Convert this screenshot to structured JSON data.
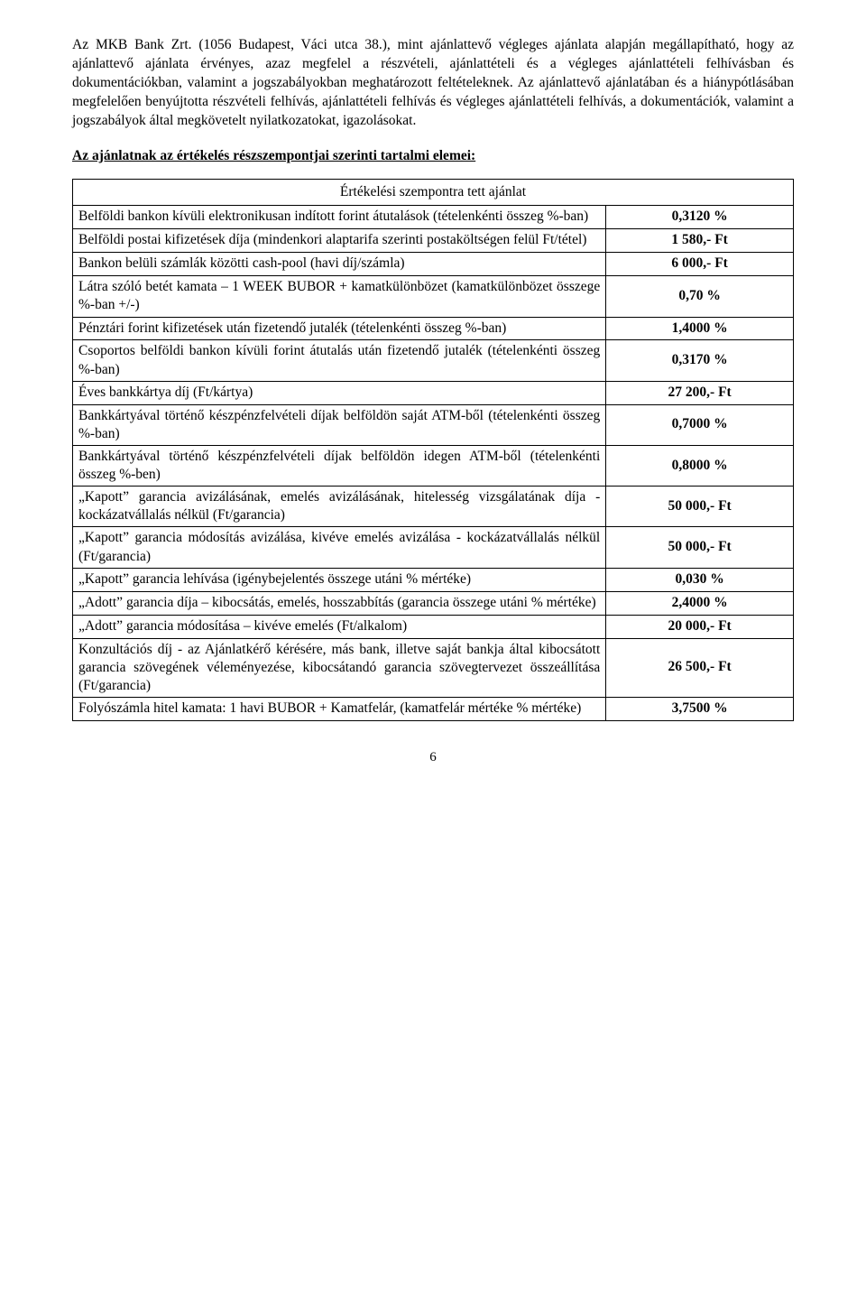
{
  "intro": {
    "para1": "Az MKB Bank Zrt. (1056 Budapest, Váci utca 38.), mint ajánlattevő végleges ajánlata alapján megállapítható, hogy az ajánlattevő ajánlata érvényes, azaz megfelel a részvételi, ajánlattételi és a végleges ajánlattételi felhívásban és dokumentációkban, valamint a jogszabályokban meghatározott feltételeknek. Az ajánlattevő ajánlatában és a hiánypótlásában megfelelően benyújtotta részvételi felhívás, ajánlattételi felhívás és végleges ajánlattételi felhívás, a dokumentációk, valamint a jogszabályok által megkövetelt nyilatkozatokat, igazolásokat."
  },
  "subheading": "Az ajánlatnak az értékelés részszempontjai szerinti tartalmi elemei:",
  "table": {
    "header": "Értékelési szempontra tett ajánlat",
    "rows": [
      {
        "label": "Belföldi bankon kívüli elektronikusan indított forint átutalások (tételenkénti összeg %-ban)",
        "value": "0,3120 %"
      },
      {
        "label": "Belföldi postai kifizetések díja (mindenkori alaptarifa szerinti postaköltségen felül Ft/tétel)",
        "value": "1 580,- Ft"
      },
      {
        "label": "Bankon belüli számlák közötti cash-pool (havi díj/számla)",
        "value": "6 000,- Ft"
      },
      {
        "label": "Látra szóló betét kamata – 1 WEEK BUBOR + kamatkülönbözet (kamatkülönbözet összege %-ban +/-)",
        "value": "0,70 %"
      },
      {
        "label": "Pénztári forint kifizetések után fizetendő jutalék (tételenkénti összeg %-ban)",
        "value": "1,4000 %"
      },
      {
        "label": "Csoportos belföldi bankon kívüli forint átutalás után fizetendő jutalék (tételenkénti összeg %-ban)",
        "value": "0,3170 %"
      },
      {
        "label": "Éves bankkártya díj (Ft/kártya)",
        "value": "27 200,- Ft"
      },
      {
        "label": "Bankkártyával történő készpénzfelvételi díjak belföldön saját ATM-ből (tételenkénti összeg %-ban)",
        "value": "0,7000 %"
      },
      {
        "label": "Bankkártyával történő készpénzfelvételi díjak belföldön idegen ATM-ből (tételenkénti összeg %-ben)",
        "value": "0,8000 %"
      },
      {
        "label": "„Kapott” garancia avizálásának, emelés avizálásának, hitelesség vizsgálatának díja - kockázatvállalás nélkül (Ft/garancia)",
        "value": "50 000,- Ft"
      },
      {
        "label": "„Kapott” garancia módosítás avizálása, kivéve emelés avizálása - kockázatvállalás nélkül (Ft/garancia)",
        "value": "50 000,- Ft"
      },
      {
        "label": "„Kapott” garancia lehívása (igénybejelentés összege utáni % mértéke)",
        "value": "0,030 %"
      },
      {
        "label": "„Adott” garancia díja – kibocsátás, emelés, hosszabbítás (garancia összege utáni %  mértéke)",
        "value": "2,4000 %"
      },
      {
        "label": "„Adott” garancia módosítása – kivéve emelés (Ft/alkalom)",
        "value": "20 000,- Ft"
      },
      {
        "label": "Konzultációs díj - az Ajánlatkérő kérésére, más bank, illetve saját bankja által kibocsátott garancia szövegének véleményezése, kibocsátandó garancia szövegtervezet összeállítása (Ft/garancia)",
        "value": "26 500,- Ft"
      },
      {
        "label": "Folyószámla hitel kamata: 1 havi BUBOR + Kamatfelár, (kamatfelár mértéke % mértéke)",
        "value": "3,7500 %"
      }
    ]
  },
  "pageNumber": "6"
}
